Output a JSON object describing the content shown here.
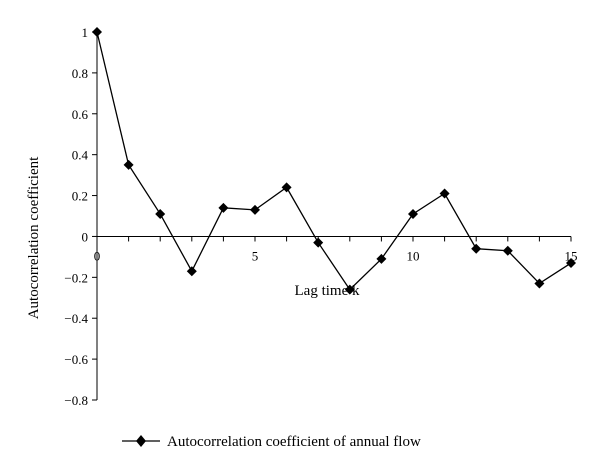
{
  "chart_data": {
    "type": "line",
    "x": [
      0,
      1,
      2,
      3,
      4,
      5,
      6,
      7,
      8,
      9,
      10,
      11,
      12,
      13,
      14,
      15
    ],
    "series": [
      {
        "name": "Autocorrelation coefficient of annual flow",
        "values": [
          1.0,
          0.35,
          0.11,
          -0.17,
          0.14,
          0.13,
          0.24,
          -0.03,
          -0.26,
          -0.11,
          0.11,
          0.21,
          -0.06,
          -0.07,
          -0.23,
          -0.13
        ],
        "color": "#000000",
        "marker": "diamond"
      }
    ],
    "xlabel": "Lag time k",
    "ylabel": "Autocorrelation coefficient",
    "xlim": [
      0,
      15
    ],
    "ylim": [
      -0.8,
      1
    ],
    "xticks": [
      "0",
      "5",
      "10",
      "15"
    ],
    "yticks": [
      "1",
      "0.8",
      "0.6",
      "0.4",
      "0.2",
      "0",
      "−0.2",
      "−0.4",
      "−0.6",
      "−0.8"
    ],
    "grid": false,
    "legend_position": "bottom"
  }
}
